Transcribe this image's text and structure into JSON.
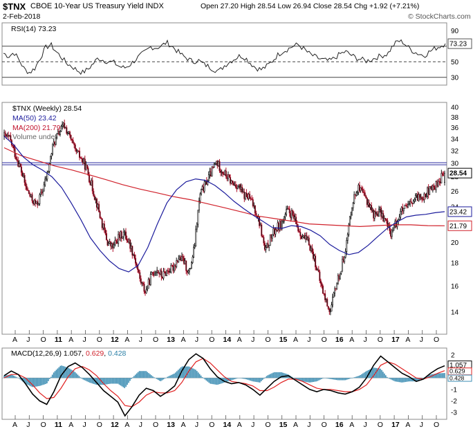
{
  "header": {
    "symbol": "$TNX",
    "name": "CBOE 10-Year US Treasury Yield INDX",
    "date": "2-Feb-2018",
    "ohlc": "Open 27.20  High 28.54  Low 26.94  Close 28.54  Chg +1.92 (+7.21%)",
    "watermark": "© StockCharts.com"
  },
  "chart_data": [
    {
      "type": "line",
      "panel": "rsi",
      "legend": "RSI(14) 73.23",
      "last_value": 73.23,
      "ylim": [
        20,
        100
      ],
      "yticks": [
        30,
        50,
        70,
        90
      ],
      "ref_lines": [
        30,
        50,
        70
      ],
      "x": "weekly 2010-04 .. 2018-02",
      "series": [
        {
          "values": [
            61,
            57,
            62,
            52,
            40,
            36,
            42,
            55,
            68,
            72,
            63,
            56,
            48,
            44,
            39,
            36,
            40,
            47,
            55,
            52,
            50,
            49,
            44,
            42,
            46,
            52,
            58,
            63,
            69,
            68,
            70,
            75,
            70,
            64,
            58,
            54,
            50,
            52,
            47,
            44,
            40,
            38,
            45,
            50,
            54,
            58,
            55,
            48,
            42,
            40,
            44,
            50,
            58,
            63,
            66,
            70,
            72,
            67,
            61,
            57,
            54,
            52,
            51,
            55,
            60,
            63,
            59,
            55,
            53,
            51,
            53,
            56,
            58,
            60,
            70,
            77,
            75,
            68,
            63,
            60,
            58,
            63,
            67,
            70,
            73.23
          ]
        }
      ]
    },
    {
      "type": "line",
      "panel": "price",
      "legend_main": "$TNX (Weekly) 28.54",
      "legend_ma50": "MA(50) 23.42",
      "legend_ma200": "MA(200) 21.79",
      "legend_volume": "Volume undef",
      "ylim": [
        12.5,
        41
      ],
      "scale": "log",
      "yticks": [
        14,
        16,
        18,
        20,
        22,
        24,
        26,
        28,
        30,
        32,
        34,
        36,
        38,
        40
      ],
      "last_labels": {
        "price": "28.54",
        "ma50": "23.42",
        "ma200": "21.79"
      },
      "hline": 30,
      "x_labels": [
        "A",
        "J",
        "O",
        "11",
        "A",
        "J",
        "O",
        "12",
        "A",
        "J",
        "O",
        "13",
        "A",
        "J",
        "O",
        "14",
        "A",
        "J",
        "O",
        "15",
        "A",
        "J",
        "O",
        "16",
        "A",
        "J",
        "O",
        "17",
        "A",
        "J",
        "O",
        "18"
      ],
      "x_bold": [
        "11",
        "12",
        "13",
        "14",
        "15",
        "16",
        "17",
        "18"
      ],
      "price": [
        34.5,
        34.0,
        31.5,
        29.2,
        26.5,
        25.0,
        24.2,
        26.0,
        28.5,
        33.0,
        35.0,
        36.5,
        34.5,
        32.0,
        31.0,
        29.5,
        27.0,
        24.5,
        22.0,
        20.0,
        19.5,
        20.5,
        21.0,
        20.0,
        18.5,
        16.5,
        15.5,
        16.8,
        17.5,
        16.8,
        17.3,
        17.5,
        18.5,
        18.2,
        17.0,
        19.5,
        25.5,
        27.0,
        28.5,
        30.2,
        29.0,
        28.0,
        27.0,
        26.8,
        25.5,
        25.2,
        24.0,
        22.0,
        19.0,
        20.5,
        21.5,
        22.0,
        23.5,
        23.0,
        21.5,
        20.5,
        20.0,
        18.5,
        16.5,
        15.0,
        14.0,
        16.0,
        17.5,
        20.0,
        24.5,
        26.5,
        25.5,
        24.5,
        23.0,
        23.5,
        22.5,
        21.0,
        22.0,
        23.5,
        23.8,
        24.5,
        25.2,
        25.5,
        26.0,
        26.5,
        27.5,
        28.54
      ],
      "ma50": [
        34.5,
        33.0,
        31.0,
        29.8,
        29.0,
        28.0,
        26.5,
        24.5,
        22.5,
        20.5,
        19.2,
        18.2,
        17.5,
        17.2,
        17.8,
        19.5,
        22.0,
        24.5,
        26.2,
        27.3,
        27.7,
        27.5,
        26.8,
        25.8,
        24.7,
        23.8,
        23.0,
        22.3,
        21.6,
        21.5,
        21.8,
        21.7,
        21.3,
        20.7,
        19.8,
        19.2,
        18.8,
        19.0,
        19.7,
        20.6,
        21.5,
        22.2,
        22.8,
        23.0,
        23.1,
        23.3,
        23.42
      ],
      "ma200": [
        32.5,
        31.2,
        30.4,
        29.6,
        29.0,
        28.3,
        27.6,
        26.9,
        26.3,
        25.8,
        25.3,
        24.9,
        24.4,
        23.9,
        23.4,
        22.9,
        22.6,
        22.3,
        22.0,
        21.9,
        21.8,
        21.7,
        21.8,
        21.9,
        21.9,
        21.8,
        21.79
      ]
    },
    {
      "type": "line",
      "panel": "macd",
      "legend_label": "MACD(12,26,9)",
      "macd_value": "1.057",
      "signal_value": "0.629",
      "histogram_value": "0.428",
      "ylim": [
        -3.6,
        2.6
      ],
      "yticks": [
        -3,
        -2,
        -1,
        0,
        1,
        2
      ],
      "last_labels": {
        "macd": "1.057",
        "signal": "0.629",
        "histogram": "0.428"
      },
      "x_labels": [
        "A",
        "J",
        "O",
        "11",
        "A",
        "J",
        "O",
        "12",
        "A",
        "J",
        "O",
        "13",
        "A",
        "J",
        "O",
        "14",
        "A",
        "J",
        "O",
        "15",
        "A",
        "J",
        "O",
        "16",
        "A",
        "J",
        "O",
        "17",
        "A",
        "J",
        "O",
        "18"
      ],
      "series": [
        {
          "values": [
            0.2,
            0.6,
            0.3,
            -0.5,
            -1.4,
            -2.0,
            -2.3,
            -1.2,
            0.2,
            1.0,
            1.3,
            0.9,
            0.3,
            -0.4,
            -1.1,
            -1.6,
            -2.1,
            -3.3,
            -2.5,
            -1.5,
            -0.9,
            -1.1,
            -1.6,
            -1.2,
            -0.7,
            0.6,
            1.6,
            2.1,
            1.7,
            0.8,
            0.1,
            -0.3,
            -0.5,
            -0.4,
            -0.6,
            -1.0,
            -1.5,
            -0.9,
            -0.3,
            0.1,
            0.2,
            -0.2,
            -0.6,
            -1.0,
            -1.2,
            -1.0,
            -1.1,
            -1.3,
            -1.4,
            -1.2,
            -0.8,
            0.0,
            1.1,
            1.9,
            1.4,
            0.9,
            0.4,
            0.1,
            -0.3,
            -0.1,
            0.4,
            0.8,
            1.057
          ]
        },
        {
          "values": [
            0.0,
            0.3,
            0.3,
            0.0,
            -0.6,
            -1.3,
            -1.8,
            -1.7,
            -0.9,
            0.1,
            0.8,
            1.0,
            0.7,
            0.2,
            -0.5,
            -1.1,
            -1.6,
            -2.4,
            -2.5,
            -2.1,
            -1.5,
            -1.2,
            -1.3,
            -1.3,
            -1.1,
            -0.4,
            0.6,
            1.4,
            1.7,
            1.3,
            0.7,
            0.1,
            -0.3,
            -0.4,
            -0.5,
            -0.7,
            -1.1,
            -1.1,
            -0.8,
            -0.4,
            -0.1,
            -0.1,
            -0.3,
            -0.6,
            -0.9,
            -1.0,
            -1.0,
            -1.1,
            -1.2,
            -1.2,
            -1.0,
            -0.6,
            0.2,
            1.1,
            1.4,
            1.2,
            0.8,
            0.4,
            0.0,
            -0.1,
            0.1,
            0.4,
            0.629
          ]
        }
      ]
    }
  ]
}
